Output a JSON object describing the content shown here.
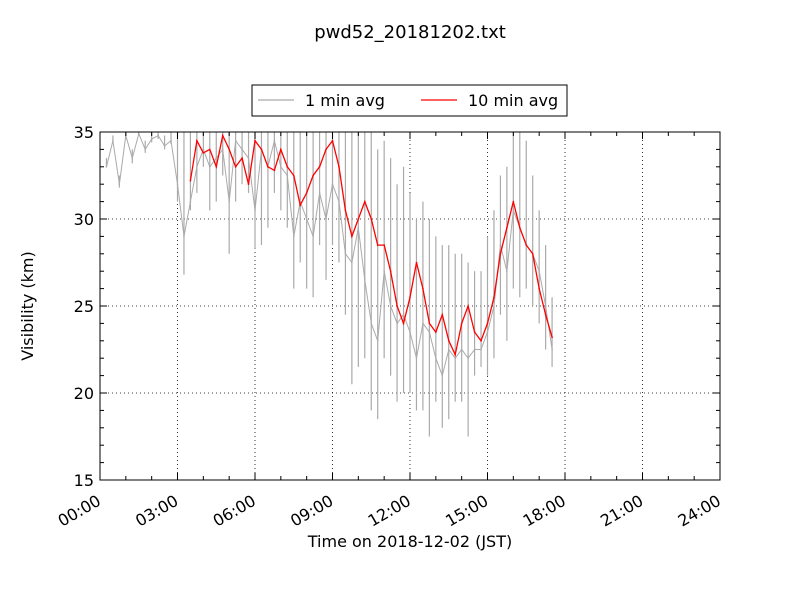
{
  "chart_data": {
    "type": "line",
    "title": "pwd52_20181202.txt",
    "xlabel": "Time on 2018-12-02 (JST)",
    "ylabel": "Visibility (km)",
    "xlim": [
      "00:00",
      "24:00"
    ],
    "ylim": [
      15,
      35
    ],
    "x_ticks": [
      "00:00",
      "03:00",
      "06:00",
      "09:00",
      "12:00",
      "15:00",
      "18:00",
      "21:00",
      "24:00"
    ],
    "y_ticks": [
      15,
      20,
      25,
      30,
      35
    ],
    "grid": true,
    "legend_position": "top-center",
    "x_hours": [
      0.25,
      0.5,
      0.75,
      1.0,
      1.25,
      1.5,
      1.75,
      2.0,
      2.25,
      2.5,
      2.75,
      3.0,
      3.25,
      3.5,
      3.75,
      4.0,
      4.25,
      4.5,
      4.75,
      5.0,
      5.25,
      5.5,
      5.75,
      6.0,
      6.25,
      6.5,
      6.75,
      7.0,
      7.25,
      7.5,
      7.75,
      8.0,
      8.25,
      8.5,
      8.75,
      9.0,
      9.25,
      9.5,
      9.75,
      10.0,
      10.25,
      10.5,
      10.75,
      11.0,
      11.25,
      11.5,
      11.75,
      12.0,
      12.25,
      12.5,
      12.75,
      13.0,
      13.25,
      13.5,
      13.75,
      14.0,
      14.25,
      14.5,
      14.75,
      15.0,
      15.25,
      15.5,
      15.75,
      16.0,
      16.25,
      16.5,
      16.75,
      17.0,
      17.25,
      17.5
    ],
    "series": [
      {
        "name": "1 min avg",
        "color": "#aaaaaa",
        "values": [
          33.0,
          34.5,
          32.0,
          34.8,
          33.5,
          34.9,
          34.0,
          34.6,
          34.8,
          34.2,
          34.5,
          32.0,
          29.0,
          31.0,
          33.0,
          34.0,
          33.0,
          33.5,
          34.0,
          31.0,
          34.5,
          34.0,
          33.5,
          30.5,
          34.0,
          33.0,
          34.5,
          33.0,
          32.5,
          29.0,
          31.0,
          30.0,
          29.0,
          31.5,
          30.0,
          32.0,
          31.0,
          28.0,
          27.5,
          29.5,
          26.5,
          24.0,
          23.0,
          27.0,
          25.0,
          24.0,
          24.5,
          23.5,
          22.0,
          24.0,
          23.5,
          22.0,
          21.0,
          22.5,
          22.0,
          22.5,
          22.0,
          22.5,
          22.5,
          23.5,
          25.0,
          28.5,
          27.0,
          30.5,
          29.5,
          28.5,
          28.0,
          27.0,
          25.0,
          22.5
        ],
        "low": [
          33.0,
          34.5,
          31.8,
          34.6,
          33.2,
          34.8,
          33.8,
          34.4,
          34.6,
          34.0,
          34.3,
          31.0,
          26.8,
          30.5,
          31.5,
          33.0,
          30.5,
          31.0,
          32.5,
          28.0,
          31.0,
          32.0,
          31.5,
          28.3,
          28.5,
          29.5,
          31.5,
          30.5,
          29.5,
          26.0,
          27.5,
          26.0,
          25.5,
          28.5,
          26.5,
          28.5,
          27.5,
          24.5,
          20.5,
          21.5,
          22.0,
          19.0,
          18.5,
          22.0,
          21.0,
          19.5,
          20.0,
          20.0,
          19.0,
          19.0,
          17.5,
          19.5,
          18.0,
          18.5,
          19.5,
          19.5,
          17.5,
          21.0,
          21.5,
          21.0,
          22.0,
          24.5,
          23.0,
          26.0,
          25.5,
          26.0,
          25.0,
          24.0,
          22.5,
          21.5
        ],
        "high": [
          33.5,
          34.8,
          32.5,
          35,
          34,
          35,
          34.5,
          35,
          35,
          34.8,
          35,
          35,
          35,
          35,
          35,
          35,
          35,
          35,
          35,
          35,
          35,
          35,
          35,
          35,
          35,
          35,
          35,
          35,
          35,
          35,
          35,
          35,
          35,
          35,
          35,
          35,
          35,
          35,
          35,
          35,
          35,
          35,
          34.0,
          34.5,
          33.5,
          32.0,
          33.0,
          31.5,
          30.0,
          31.0,
          30.0,
          29.0,
          28.5,
          28.5,
          28.0,
          28.0,
          27.5,
          27.0,
          27.0,
          29.0,
          30.5,
          32.5,
          33.0,
          35,
          35,
          34.5,
          32.5,
          30.5,
          28.5,
          25.5
        ]
      },
      {
        "name": "10 min avg",
        "color": "#ff0000",
        "x_hours": [
          3.5,
          3.75,
          4.0,
          4.25,
          4.5,
          4.75,
          5.0,
          5.25,
          5.5,
          5.75,
          6.0,
          6.25,
          6.5,
          6.75,
          7.0,
          7.25,
          7.5,
          7.75,
          8.0,
          8.25,
          8.5,
          8.75,
          9.0,
          9.25,
          9.5,
          9.75,
          10.0,
          10.25,
          10.5,
          10.75,
          11.0,
          11.25,
          11.5,
          11.75,
          12.0,
          12.25,
          12.5,
          12.75,
          13.0,
          13.25,
          13.5,
          13.75,
          14.0,
          14.25,
          14.5,
          14.75,
          15.0,
          15.25,
          15.5,
          15.75,
          16.0,
          16.25,
          16.5,
          16.75,
          17.0,
          17.25,
          17.5
        ],
        "values": [
          32.2,
          34.5,
          33.8,
          34.0,
          33.0,
          34.8,
          34.0,
          33.0,
          33.5,
          32.0,
          34.5,
          34.0,
          33.0,
          32.8,
          34.0,
          33.0,
          32.5,
          30.8,
          31.5,
          32.5,
          33.0,
          34.0,
          34.5,
          33.0,
          30.5,
          29.0,
          30.0,
          31.0,
          30.0,
          28.5,
          28.5,
          27.0,
          25.0,
          24.0,
          25.5,
          27.5,
          26.0,
          24.0,
          23.5,
          24.5,
          23.0,
          22.2,
          24.0,
          25.0,
          23.5,
          23.0,
          24.0,
          25.5,
          28.0,
          29.5,
          31.0,
          29.5,
          28.5,
          28.0,
          26.0,
          24.5,
          23.2
        ]
      }
    ]
  }
}
